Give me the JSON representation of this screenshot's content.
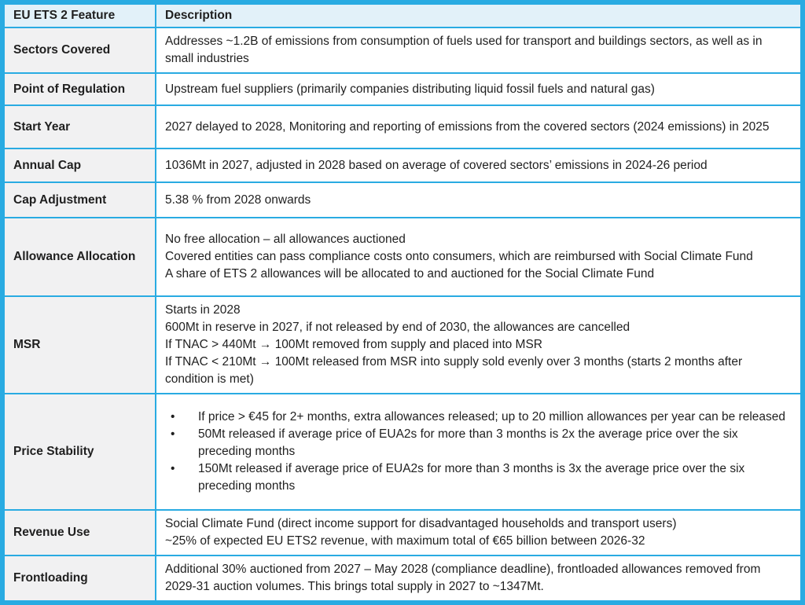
{
  "table": {
    "bullet_char": "•",
    "header": {
      "feature_label": "EU ETS 2 Feature",
      "description_label": "Description"
    },
    "rows": [
      {
        "feature": "Sectors Covered",
        "paragraphs": [
          "Addresses ~1.2B of emissions from consumption of fuels used for transport and buildings sectors, as well as in small industries"
        ]
      },
      {
        "feature": "Point of Regulation",
        "paragraphs": [
          "Upstream fuel suppliers (primarily companies distributing liquid fossil fuels and natural gas)"
        ]
      },
      {
        "feature": "Start Year",
        "paragraphs": [
          "2027 delayed to 2028, Monitoring and reporting of emissions from the covered sectors (2024 emissions) in 2025"
        ]
      },
      {
        "feature": "Annual Cap",
        "paragraphs": [
          "1036Mt in 2027, adjusted in 2028 based on average of covered sectors’ emissions in 2024-26 period"
        ]
      },
      {
        "feature": "Cap Adjustment",
        "paragraphs": [
          "5.38 % from 2028 onwards"
        ]
      },
      {
        "feature": "Allowance Allocation",
        "paragraphs": [
          "No free allocation – all allowances auctioned",
          "Covered entities can pass compliance costs onto consumers, which are reimbursed with Social Climate Fund",
          "A share of ETS 2 allowances will be allocated to and auctioned for the Social Climate Fund"
        ]
      },
      {
        "feature": "MSR",
        "paragraphs": [
          "Starts in 2028",
          "600Mt in reserve in 2027, if not released by end of 2030, the allowances are cancelled",
          "If TNAC > 440Mt → 100Mt removed from supply and placed into MSR",
          "If TNAC < 210Mt → 100Mt released from MSR into supply sold evenly over 3 months (starts 2 months after condition is met)"
        ]
      },
      {
        "feature": "Price Stability",
        "bullets": [
          "If price > €45 for 2+ months, extra allowances released; up to 20 million allowances per year can be released",
          "50Mt released if average price of EUA2s for more than 3 months is 2x the average price over the six preceding months",
          "150Mt released if average price of EUA2s for more than 3 months is 3x the average price over the six preceding months"
        ]
      },
      {
        "feature": "Revenue Use",
        "paragraphs": [
          "Social Climate Fund (direct income support for disadvantaged households and transport users)",
          "~25% of expected EU ETS2 revenue, with maximum total of €65 billion between 2026-32"
        ]
      },
      {
        "feature": "Frontloading",
        "paragraphs": [
          "Additional 30% auctioned from 2027 – May 2028 (compliance deadline), frontloaded allowances removed from 2029-31 auction volumes. This brings total supply in 2027 to ~1347Mt."
        ]
      }
    ],
    "colors": {
      "border_blue": "#29ABE2",
      "header_bg": "#E2F1F9",
      "feature_bg": "#F1F1F2",
      "text": "#1F1F1F"
    }
  }
}
